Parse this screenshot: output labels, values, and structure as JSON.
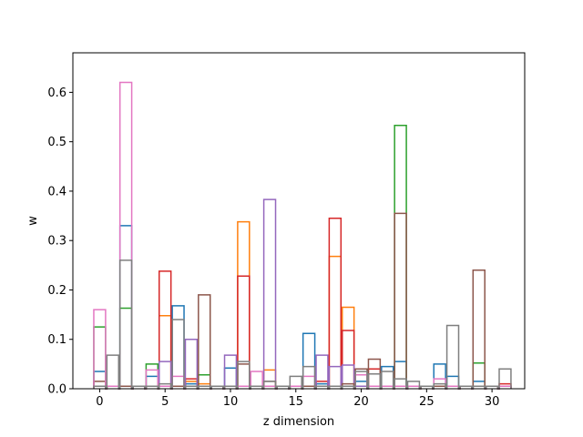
{
  "chart_data": {
    "type": "histogram-step",
    "xlabel": "z dimension",
    "ylabel": "w",
    "xlim": [
      -2.05,
      32.5
    ],
    "ylim": [
      0,
      0.68
    ],
    "xticks": [
      0,
      5,
      10,
      15,
      20,
      25,
      30
    ],
    "yticks": [
      0.0,
      0.1,
      0.2,
      0.3,
      0.4,
      0.5,
      0.6
    ],
    "bins": 32,
    "grid": false,
    "series": [
      {
        "color": "#1f77b4",
        "values": [
          0.035,
          0.005,
          0.33,
          0.005,
          0.025,
          0.005,
          0.168,
          0.01,
          0.005,
          0.005,
          0.042,
          0.005,
          0.005,
          0.005,
          0.005,
          0.005,
          0.112,
          0.01,
          0.005,
          0.005,
          0.015,
          0.005,
          0.045,
          0.055,
          0.005,
          0.005,
          0.05,
          0.025,
          0.005,
          0.015,
          0.005,
          0.005
        ]
      },
      {
        "color": "#ff7f0e",
        "values": [
          0.005,
          0.005,
          0.005,
          0.005,
          0.005,
          0.148,
          0.005,
          0.015,
          0.01,
          0.005,
          0.005,
          0.338,
          0.005,
          0.038,
          0.005,
          0.005,
          0.005,
          0.005,
          0.268,
          0.165,
          0.005,
          0.005,
          0.005,
          0.005,
          0.005,
          0.005,
          0.005,
          0.005,
          0.005,
          0.005,
          0.005,
          0.005
        ]
      },
      {
        "color": "#2ca02c",
        "values": [
          0.125,
          0.005,
          0.163,
          0.005,
          0.05,
          0.005,
          0.005,
          0.005,
          0.028,
          0.005,
          0.005,
          0.005,
          0.005,
          0.005,
          0.005,
          0.005,
          0.005,
          0.005,
          0.005,
          0.005,
          0.005,
          0.005,
          0.005,
          0.533,
          0.005,
          0.005,
          0.005,
          0.005,
          0.005,
          0.052,
          0.005,
          0.005
        ]
      },
      {
        "color": "#d62728",
        "values": [
          0.005,
          0.005,
          0.005,
          0.005,
          0.005,
          0.238,
          0.005,
          0.02,
          0.005,
          0.005,
          0.005,
          0.228,
          0.005,
          0.005,
          0.005,
          0.005,
          0.005,
          0.015,
          0.345,
          0.118,
          0.005,
          0.04,
          0.005,
          0.005,
          0.005,
          0.005,
          0.005,
          0.005,
          0.005,
          0.005,
          0.005,
          0.01
        ]
      },
      {
        "color": "#9467bd",
        "values": [
          0.005,
          0.005,
          0.005,
          0.005,
          0.005,
          0.055,
          0.005,
          0.1,
          0.005,
          0.005,
          0.068,
          0.005,
          0.005,
          0.383,
          0.005,
          0.005,
          0.005,
          0.068,
          0.045,
          0.048,
          0.005,
          0.005,
          0.005,
          0.005,
          0.005,
          0.005,
          0.005,
          0.005,
          0.005,
          0.005,
          0.005,
          0.005
        ]
      },
      {
        "color": "#8c564b",
        "values": [
          0.015,
          0.005,
          0.005,
          0.005,
          0.005,
          0.005,
          0.005,
          0.005,
          0.19,
          0.005,
          0.005,
          0.05,
          0.005,
          0.015,
          0.005,
          0.005,
          0.005,
          0.005,
          0.005,
          0.01,
          0.04,
          0.06,
          0.005,
          0.355,
          0.005,
          0.005,
          0.005,
          0.005,
          0.005,
          0.24,
          0.005,
          0.005
        ]
      },
      {
        "color": "#e377c2",
        "values": [
          0.16,
          0.005,
          0.62,
          0.005,
          0.038,
          0.005,
          0.025,
          0.005,
          0.005,
          0.005,
          0.005,
          0.005,
          0.035,
          0.005,
          0.005,
          0.005,
          0.025,
          0.005,
          0.005,
          0.005,
          0.028,
          0.005,
          0.005,
          0.005,
          0.005,
          0.005,
          0.02,
          0.005,
          0.005,
          0.005,
          0.005,
          0.005
        ]
      },
      {
        "color": "#7f7f7f",
        "values": [
          0.005,
          0.068,
          0.26,
          0.005,
          0.005,
          0.01,
          0.14,
          0.005,
          0.005,
          0.005,
          0.005,
          0.055,
          0.005,
          0.015,
          0.005,
          0.025,
          0.045,
          0.005,
          0.005,
          0.005,
          0.035,
          0.03,
          0.035,
          0.02,
          0.015,
          0.005,
          0.01,
          0.128,
          0.005,
          0.005,
          0.005,
          0.04
        ]
      }
    ]
  }
}
